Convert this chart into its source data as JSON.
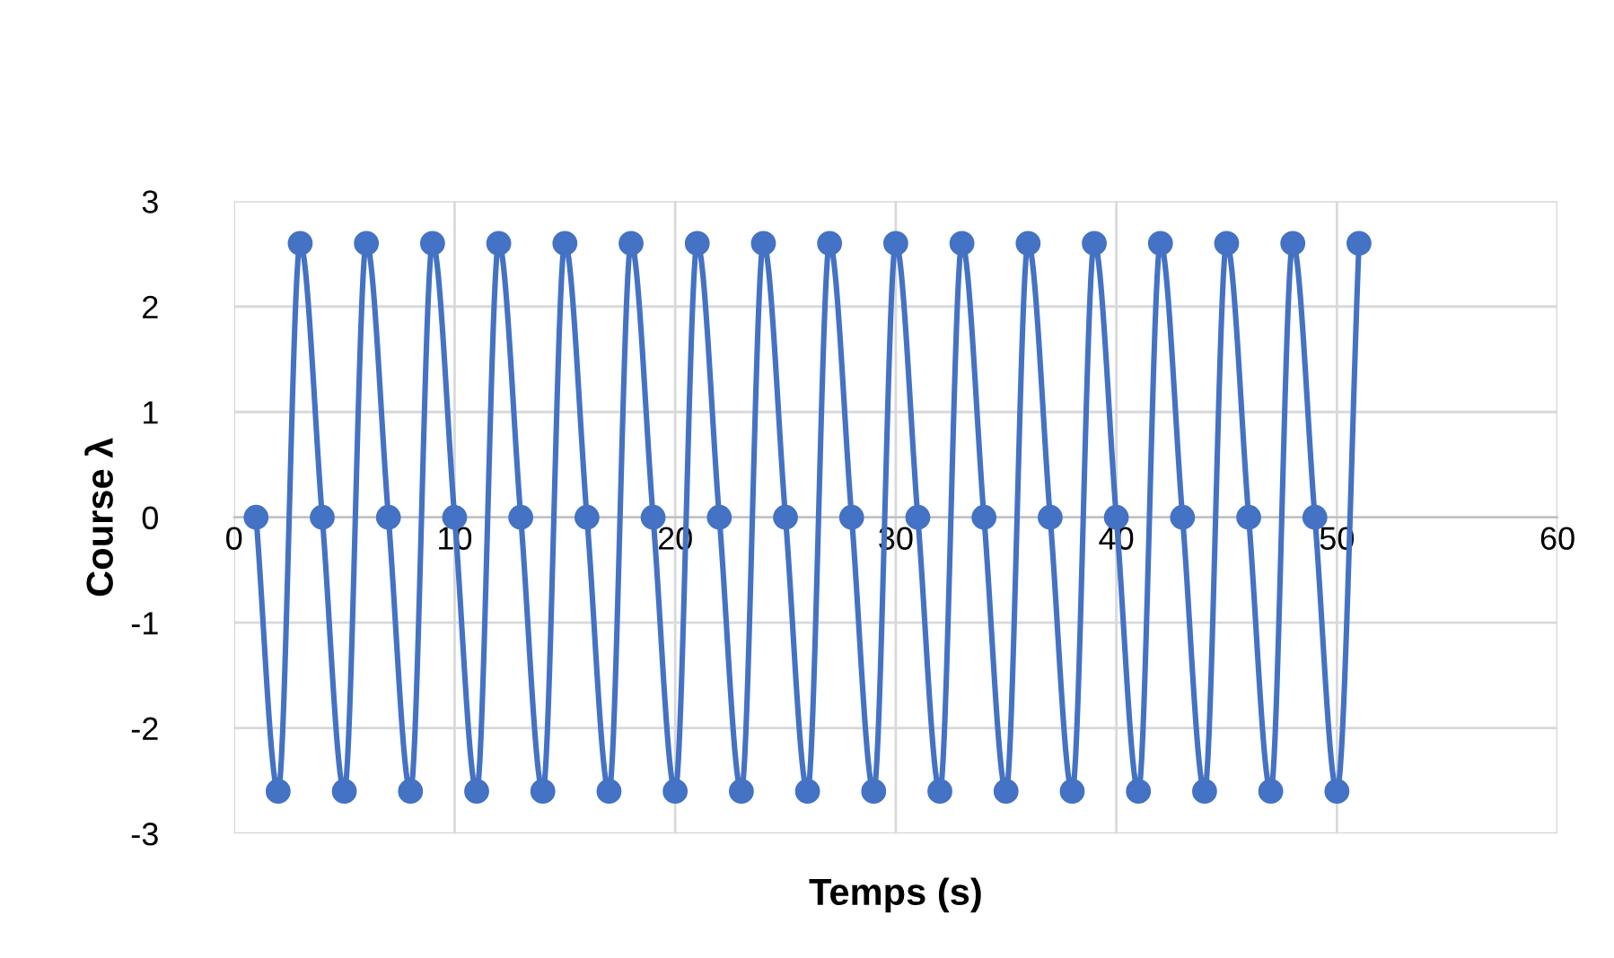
{
  "chart_data": {
    "type": "line",
    "xlabel": "Temps (s)",
    "ylabel": "Course λ",
    "series": [
      {
        "color": "#4472c4",
        "x": [
          1,
          2,
          3,
          4,
          5,
          6,
          7,
          8,
          9,
          10,
          11,
          12,
          13,
          14,
          15,
          16,
          17,
          18,
          19,
          20,
          21,
          22,
          23,
          24,
          25,
          26,
          27,
          28,
          29,
          30,
          31,
          32,
          33,
          34,
          35,
          36,
          37,
          38,
          39,
          40,
          41,
          42,
          43,
          44,
          45,
          46,
          47,
          48,
          49,
          50,
          51
        ],
        "values": [
          0,
          -2.6,
          2.6,
          0,
          -2.6,
          2.6,
          0,
          -2.6,
          2.6,
          0,
          -2.6,
          2.6,
          0,
          -2.6,
          2.6,
          0,
          -2.6,
          2.6,
          0,
          -2.6,
          2.6,
          0,
          -2.6,
          2.6,
          0,
          -2.6,
          2.6,
          0,
          -2.6,
          2.6,
          0,
          -2.6,
          2.6,
          0,
          -2.6,
          2.6,
          0,
          -2.6,
          2.6,
          0,
          -2.6,
          2.6,
          0,
          -2.6,
          2.6,
          0,
          -2.6,
          2.6,
          0,
          -2.6,
          2.6
        ]
      }
    ],
    "xlim": [
      0,
      60
    ],
    "xticks": [
      0,
      10,
      20,
      30,
      40,
      50,
      60
    ],
    "ylim": [
      -3,
      3
    ],
    "yticks": [
      -3,
      -2,
      -1,
      0,
      1,
      2,
      3
    ],
    "grid": true,
    "marker": "circle",
    "line_style": "solid"
  }
}
